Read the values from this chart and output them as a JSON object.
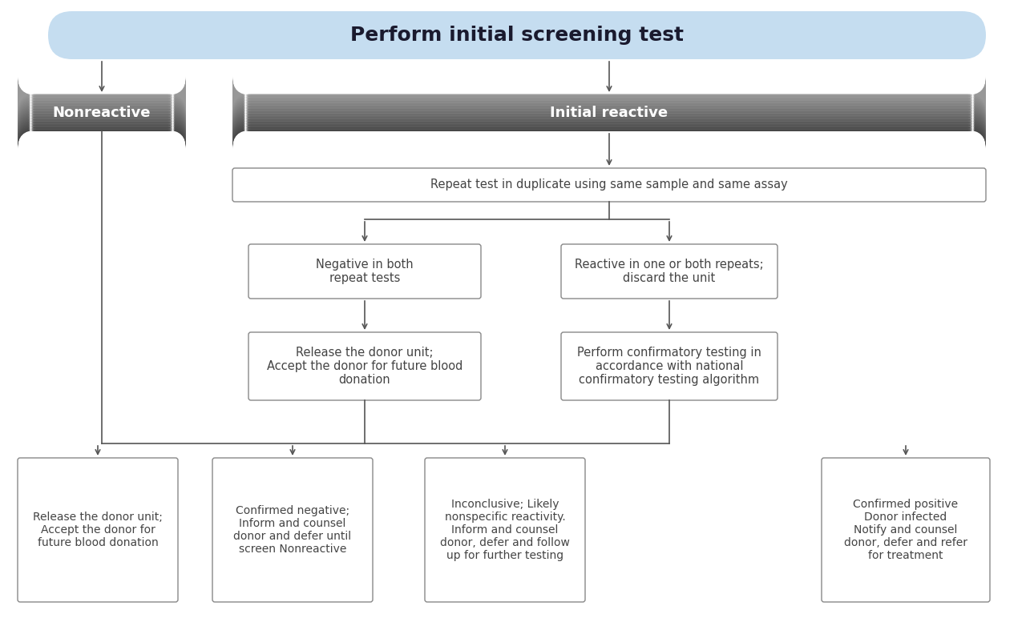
{
  "title": "Perform initial screening test",
  "title_bg": "#c5ddf0",
  "title_text_color": "#1a1a2e",
  "pill_nonreactive_text": "Nonreactive",
  "pill_reactive_text": "Initial reactive",
  "box_border_color": "#888888",
  "box_bg": "#ffffff",
  "box_text_color": "#444444",
  "arrow_color": "#555555",
  "background_color": "#ffffff",
  "boxes": {
    "repeat_test": "Repeat test in duplicate using same sample and same assay",
    "negative_both": "Negative in both\nrepeat tests",
    "reactive_one_or_both": "Reactive in one or both repeats;\ndiscard the unit",
    "release_donor_middle": "Release the donor unit;\nAccept the donor for future blood\ndonation",
    "perform_confirmatory": "Perform confirmatory testing in\naccordance with national\nconfirmatory testing algorithm",
    "release_donor_left": "Release the donor unit;\nAccept the donor for\nfuture blood donation",
    "confirmed_negative": "Confirmed negative;\nInform and counsel\ndonor and defer until\nscreen Nonreactive",
    "inconclusive": "Inconclusive; Likely\nnonspecific reactivity.\nInform and counsel\ndonor, defer and follow\nup for further testing",
    "confirmed_positive": "Confirmed positive\nDonor infected\nNotify and counsel\ndonor, defer and refer\nfor treatment"
  }
}
